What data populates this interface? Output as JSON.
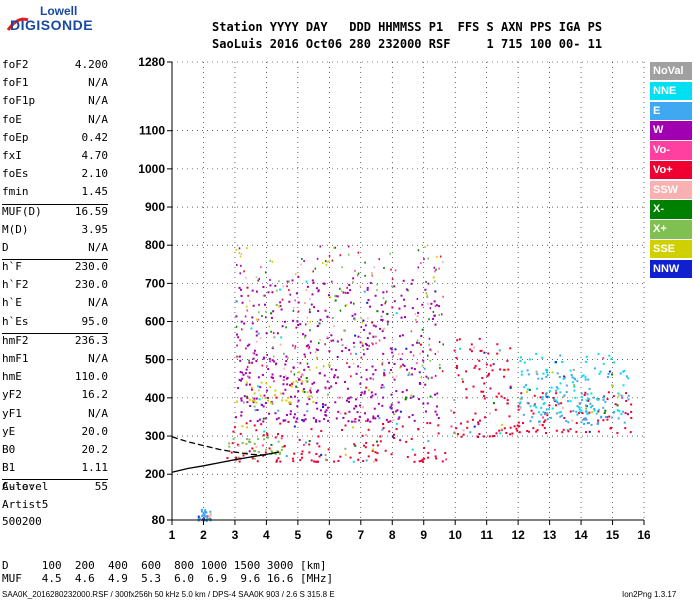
{
  "logo": {
    "line1": "Lowell",
    "line2": "DIGISONDE"
  },
  "header": {
    "labels": "Station YYYY DAY   DDD HHMMSS P1  FFS S AXN PPS IGA PS",
    "values": "SaoLuis 2016 Oct06 280 232000 RSF     1 715 100 00- 11"
  },
  "params": [
    [
      {
        "k": "foF2",
        "v": "4.200"
      },
      {
        "k": "foF1",
        "v": "N/A"
      },
      {
        "k": "foF1p",
        "v": "N/A"
      },
      {
        "k": "foE",
        "v": "N/A"
      },
      {
        "k": "foEp",
        "v": "0.42"
      },
      {
        "k": "fxI",
        "v": "4.70"
      },
      {
        "k": "foEs",
        "v": "2.10"
      },
      {
        "k": "fmin",
        "v": "1.45"
      }
    ],
    [
      {
        "k": "MUF(D)",
        "v": "16.59"
      },
      {
        "k": "M(D)",
        "v": "3.95"
      },
      {
        "k": "D",
        "v": "N/A"
      }
    ],
    [
      {
        "k": "h`F",
        "v": "230.0"
      },
      {
        "k": "h`F2",
        "v": "230.0"
      },
      {
        "k": "h`E",
        "v": "N/A"
      },
      {
        "k": "h`Es",
        "v": "95.0"
      }
    ],
    [
      {
        "k": "hmF2",
        "v": "236.3"
      },
      {
        "k": "hmF1",
        "v": "N/A"
      },
      {
        "k": "hmE",
        "v": "110.0"
      },
      {
        "k": "yF2",
        "v": "16.2"
      },
      {
        "k": "yF1",
        "v": "N/A"
      },
      {
        "k": "yE",
        "v": "20.0"
      },
      {
        "k": "B0",
        "v": "20.2"
      },
      {
        "k": "B1",
        "v": "1.11"
      }
    ],
    [
      {
        "k": "C-level",
        "v": "55"
      }
    ]
  ],
  "auto": {
    "line1": "Auto:",
    "line2": "Artist5",
    "line3": "500200"
  },
  "legend": [
    {
      "label": "NoVal",
      "color": "#a0a0a0"
    },
    {
      "label": "NNE",
      "color": "#00e0f0"
    },
    {
      "label": "E",
      "color": "#40a8f0"
    },
    {
      "label": "W",
      "color": "#a000b0"
    },
    {
      "label": "Vo-",
      "color": "#ff40a0"
    },
    {
      "label": "Vo+",
      "color": "#f00030"
    },
    {
      "label": "SSW",
      "color": "#f8b0b0"
    },
    {
      "label": "X-",
      "color": "#008000"
    },
    {
      "label": "X+",
      "color": "#80c050"
    },
    {
      "label": "SSE",
      "color": "#d0d000"
    },
    {
      "label": "NNW",
      "color": "#1020d0"
    }
  ],
  "footer": {
    "d_line": "D     100  200  400  600  800 1000 1500 3000 [km]",
    "muf_line": "MUF   4.5  4.6  4.9  5.3  6.0  6.9  9.6 16.6 [MHz]",
    "file_line": "SAA0K_2016280232000.RSF / 300fx256h 50 kHz 5.0 km / DPS-4 SAA0K 903 / 2.6 S 315.8 E",
    "version": "Ion2Png 1.3.17"
  },
  "chart_data": {
    "type": "scatter",
    "title": "",
    "xlabel": "",
    "ylabel": "",
    "xlim": [
      1,
      16
    ],
    "ylim": [
      80,
      1280
    ],
    "x_ticks": [
      "1",
      "2",
      "3",
      "4",
      "5",
      "6",
      "7",
      "8",
      "9",
      "10",
      "11",
      "12",
      "13",
      "14",
      "15",
      "16"
    ],
    "y_ticks": [
      "80",
      "200",
      "300",
      "400",
      "500",
      "600",
      "700",
      "800",
      "900",
      "1000",
      "1100",
      "1280"
    ],
    "grid": true,
    "clusters": [
      {
        "name": "Vo+",
        "color": "#f00030",
        "x": [
          2.6,
          9.8
        ],
        "y": [
          235,
          340
        ]
      },
      {
        "name": "Vo+",
        "color": "#f00030",
        "x": [
          9.8,
          11.8
        ],
        "y": [
          300,
          560
        ]
      },
      {
        "name": "Vo+",
        "color": "#f00030",
        "x": [
          11.8,
          15.6
        ],
        "y": [
          310,
          420
        ]
      },
      {
        "name": "W",
        "color": "#a000b0",
        "x": [
          3.0,
          9.5
        ],
        "y": [
          340,
          720
        ]
      },
      {
        "name": "SSE",
        "color": "#d0d000",
        "x": [
          3.0,
          5.5
        ],
        "y": [
          390,
          450
        ]
      },
      {
        "name": "NNE",
        "color": "#00e0f0",
        "x": [
          12.0,
          15.5
        ],
        "y": [
          360,
          520
        ]
      },
      {
        "name": "E",
        "color": "#40a8f0",
        "x": [
          12.0,
          15.5
        ],
        "y": [
          330,
          480
        ]
      },
      {
        "name": "X+",
        "color": "#80c050",
        "x": [
          2.7,
          4.5
        ],
        "y": [
          240,
          300
        ]
      },
      {
        "name": "E",
        "color": "#40a8f0",
        "x": [
          1.8,
          2.2
        ],
        "y": [
          80,
          110
        ]
      }
    ],
    "traces": [
      {
        "name": "h-trace-solid",
        "x": [
          1,
          1.5,
          2,
          2.5,
          3,
          3.5,
          4,
          4.4
        ],
        "y": [
          205,
          215,
          222,
          230,
          238,
          245,
          252,
          258
        ]
      },
      {
        "name": "h-trace-dashed",
        "x": [
          1,
          1.5,
          2,
          2.5,
          3,
          3.5,
          4
        ],
        "y": [
          298,
          285,
          275,
          265,
          258,
          252,
          250
        ]
      }
    ]
  }
}
